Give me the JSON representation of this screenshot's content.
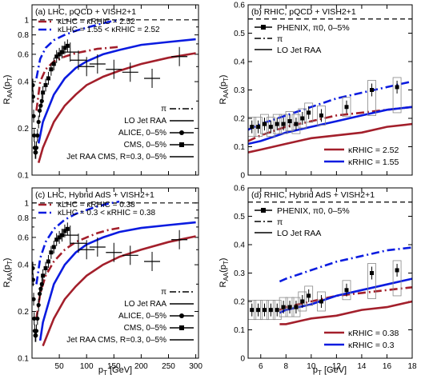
{
  "colors": {
    "red": "#a31f2b",
    "blue": "#0a1be0",
    "black": "#000000"
  },
  "x_axis_label": "p",
  "x_axis_label_sub": "T",
  "x_axis_label_unit": " [GeV]",
  "y_axis_label_main": "R",
  "y_axis_label_sub": "AA",
  "y_axis_label_paren": "(p",
  "y_axis_label_paren_sub": "T",
  "y_axis_label_close": ")",
  "chart_data": [
    {
      "id": "a",
      "type": "line",
      "title": "(a) LHC, pQCD + VISH2+1",
      "xscale": "linear",
      "yscale": "log",
      "xlim": [
        0,
        305
      ],
      "ylim": [
        0.1,
        1.25
      ],
      "x_ticks": [
        "50",
        "100",
        "150",
        "200",
        "250",
        "300"
      ],
      "y_ticks": [
        "0.1",
        "0.2",
        "0.4",
        "0.6",
        "0.8",
        "1"
      ],
      "show_x_tick_labels": false,
      "series": [
        {
          "name": "κLHC = κRHIC = 2.52",
          "color": "red",
          "dash": "dashdot",
          "x": [
            8,
            15,
            25,
            40,
            60,
            80,
            100,
            120,
            140,
            160
          ],
          "y": [
            0.26,
            0.4,
            0.48,
            0.54,
            0.58,
            0.61,
            0.63,
            0.65,
            0.66,
            0.67
          ]
        },
        {
          "name": "κLHC = 1.55 < κRHIC = 2.52",
          "color": "blue",
          "dash": "dashdot",
          "x": [
            8,
            15,
            25,
            40,
            60,
            80,
            100,
            120,
            140,
            160
          ],
          "y": [
            0.42,
            0.56,
            0.66,
            0.74,
            0.8,
            0.85,
            0.89,
            0.93,
            0.97,
            1.0
          ]
        },
        {
          "name": "red solid",
          "color": "red",
          "dash": "solid",
          "x": [
            12,
            20,
            40,
            60,
            80,
            100,
            130,
            160,
            200,
            250,
            300
          ],
          "y": [
            0.12,
            0.15,
            0.22,
            0.28,
            0.33,
            0.38,
            0.43,
            0.47,
            0.52,
            0.57,
            0.61
          ]
        },
        {
          "name": "blue solid",
          "color": "blue",
          "dash": "solid",
          "x": [
            12,
            20,
            40,
            60,
            80,
            100,
            130,
            160,
            200,
            250,
            300
          ],
          "y": [
            0.16,
            0.22,
            0.33,
            0.42,
            0.49,
            0.54,
            0.6,
            0.64,
            0.69,
            0.72,
            0.75
          ]
        },
        {
          "name": "ALICE, 0–5%",
          "color": "black",
          "marker": "circle",
          "x": [
            1.5,
            2,
            3,
            4,
            5,
            6,
            7,
            8,
            10,
            12,
            14,
            16,
            18
          ],
          "y": [
            0.38,
            0.32,
            0.24,
            0.18,
            0.15,
            0.14,
            0.14,
            0.15,
            0.18,
            0.22,
            0.26,
            0.28,
            0.3
          ]
        },
        {
          "name": "CMS, 0–5%",
          "color": "black",
          "marker": "square",
          "x": [
            20,
            25,
            30,
            35,
            40,
            45,
            50,
            55,
            60,
            65
          ],
          "y": [
            0.34,
            0.38,
            0.42,
            0.48,
            0.52,
            0.58,
            0.6,
            0.62,
            0.66,
            0.68
          ]
        },
        {
          "name": "Jet RAA CMS, R=0.3, 0–5%",
          "color": "black",
          "marker": "cross",
          "x": [
            70,
            85,
            100,
            120,
            150,
            180,
            220,
            270
          ],
          "y": [
            0.62,
            0.55,
            0.5,
            0.52,
            0.48,
            0.46,
            0.42,
            0.58
          ]
        }
      ],
      "legend": [
        "κLHC = κRHIC = 2.52",
        "κLHC = 1.55 < κRHIC = 2.52"
      ],
      "legend2": [
        {
          "label": "π",
          "style": "dashdot"
        },
        {
          "label": "LO Jet RAA",
          "style": "solid"
        },
        {
          "label": "ALICE, 0–5%",
          "style": "circle"
        },
        {
          "label": "CMS, 0–5%",
          "style": "square"
        },
        {
          "label": "Jet RAA CMS, R=0.3, 0–5%",
          "style": "cross"
        }
      ]
    },
    {
      "id": "b",
      "type": "line",
      "title": "(b) RHIC, pQCD + VISH2+1",
      "xscale": "linear",
      "yscale": "linear",
      "xlim": [
        5,
        18
      ],
      "ylim": [
        0,
        0.6
      ],
      "x_ticks": [
        "6",
        "8",
        "10",
        "12",
        "14",
        "16",
        "18"
      ],
      "y_ticks": [
        "0",
        "0.1",
        "0.2",
        "0.3",
        "0.4",
        "0.5",
        "0.6"
      ],
      "show_x_tick_labels": false,
      "series": [
        {
          "name": "red dashdot",
          "color": "red",
          "dash": "dashdot",
          "x": [
            5,
            6,
            8,
            10,
            12,
            14,
            16,
            18
          ],
          "y": [
            0.12,
            0.14,
            0.17,
            0.19,
            0.21,
            0.22,
            0.23,
            0.24
          ]
        },
        {
          "name": "blue dashdot",
          "color": "blue",
          "dash": "dashdot",
          "x": [
            5,
            6,
            8,
            10,
            12,
            14,
            16,
            18
          ],
          "y": [
            0.16,
            0.18,
            0.21,
            0.24,
            0.27,
            0.29,
            0.31,
            0.33
          ]
        },
        {
          "name": "κRHIC = 2.52",
          "color": "red",
          "dash": "solid",
          "x": [
            5,
            6,
            8,
            10,
            12,
            14,
            16,
            18
          ],
          "y": [
            0.08,
            0.09,
            0.11,
            0.13,
            0.14,
            0.15,
            0.17,
            0.18
          ]
        },
        {
          "name": "κRHIC = 1.55",
          "color": "blue",
          "dash": "solid",
          "x": [
            5,
            6,
            8,
            10,
            12,
            14,
            16,
            18
          ],
          "y": [
            0.11,
            0.12,
            0.15,
            0.17,
            0.19,
            0.21,
            0.23,
            0.24
          ]
        },
        {
          "name": "PHENIX, π0, 0–5%",
          "color": "black",
          "marker": "square",
          "x": [
            5.3,
            5.8,
            6.3,
            6.8,
            7.3,
            7.8,
            8.3,
            8.8,
            9.3,
            9.8,
            10.8,
            12.8,
            14.8,
            16.8
          ],
          "y": [
            0.17,
            0.17,
            0.18,
            0.17,
            0.18,
            0.18,
            0.19,
            0.18,
            0.2,
            0.22,
            0.21,
            0.24,
            0.3,
            0.31
          ]
        }
      ],
      "legend_top": [
        {
          "label": "PHENIX, π0, 0–5%",
          "style": "square"
        },
        {
          "label": "π",
          "style": "dashdot"
        },
        {
          "label": "LO Jet RAA",
          "style": "solid"
        }
      ],
      "legend_bottom": [
        "κRHIC = 2.52",
        "κRHIC = 1.55"
      ]
    },
    {
      "id": "c",
      "type": "line",
      "title": "(c) LHC, Hybrid AdS + VISH2+1",
      "xscale": "linear",
      "yscale": "log",
      "xlim": [
        0,
        305
      ],
      "ylim": [
        0.1,
        1.25
      ],
      "x_ticks": [
        "50",
        "100",
        "150",
        "200",
        "250",
        "300"
      ],
      "y_ticks": [
        "0.1",
        "0.2",
        "0.4",
        "0.6",
        "0.8",
        "1"
      ],
      "show_x_tick_labels": true,
      "series": [
        {
          "name": "κLHC = κRHIC = 0.38",
          "color": "red",
          "dash": "dashdot",
          "x": [
            8,
            15,
            25,
            40,
            60,
            80,
            100,
            120,
            140,
            160
          ],
          "y": [
            0.18,
            0.26,
            0.34,
            0.42,
            0.5,
            0.56,
            0.6,
            0.64,
            0.67,
            0.69
          ]
        },
        {
          "name": "κLHC = 0.3 < κRHIC = 0.38",
          "color": "blue",
          "dash": "dashdot",
          "x": [
            8,
            15,
            25,
            40,
            60,
            80,
            100,
            120,
            140,
            160
          ],
          "y": [
            0.3,
            0.44,
            0.56,
            0.68,
            0.78,
            0.85,
            0.9,
            0.95,
            0.99,
            1.02
          ]
        },
        {
          "name": "red solid",
          "color": "red",
          "dash": "solid",
          "x": [
            20,
            40,
            60,
            80,
            100,
            130,
            160,
            200,
            250,
            300
          ],
          "y": [
            0.12,
            0.18,
            0.24,
            0.29,
            0.34,
            0.4,
            0.45,
            0.5,
            0.56,
            0.61
          ]
        },
        {
          "name": "blue solid",
          "color": "blue",
          "dash": "solid",
          "x": [
            15,
            20,
            40,
            60,
            80,
            100,
            130,
            160,
            200,
            250,
            300
          ],
          "y": [
            0.13,
            0.17,
            0.3,
            0.4,
            0.48,
            0.54,
            0.6,
            0.65,
            0.69,
            0.72,
            0.75
          ]
        },
        {
          "name": "ALICE, 0–5%",
          "color": "black",
          "marker": "circle",
          "x": [
            1.5,
            2,
            3,
            4,
            5,
            6,
            7,
            8,
            10,
            12,
            14,
            16,
            18
          ],
          "y": [
            0.38,
            0.32,
            0.24,
            0.18,
            0.15,
            0.14,
            0.14,
            0.15,
            0.18,
            0.22,
            0.26,
            0.28,
            0.3
          ]
        },
        {
          "name": "CMS, 0–5%",
          "color": "black",
          "marker": "square",
          "x": [
            20,
            25,
            30,
            35,
            40,
            45,
            50,
            55,
            60,
            65
          ],
          "y": [
            0.34,
            0.38,
            0.42,
            0.48,
            0.52,
            0.58,
            0.6,
            0.62,
            0.66,
            0.68
          ]
        },
        {
          "name": "Jet RAA CMS, R=0.3, 0–5%",
          "color": "black",
          "marker": "cross",
          "x": [
            70,
            85,
            100,
            120,
            150,
            180,
            220,
            270
          ],
          "y": [
            0.62,
            0.55,
            0.5,
            0.52,
            0.48,
            0.46,
            0.42,
            0.58
          ]
        }
      ],
      "legend": [
        "κLHC = κRHIC = 0.38",
        "κLHC = 0.3 < κRHIC = 0.38"
      ],
      "legend2": [
        {
          "label": "π",
          "style": "dashdot"
        },
        {
          "label": "LO Jet RAA",
          "style": "solid"
        },
        {
          "label": "ALICE, 0–5%",
          "style": "circle"
        },
        {
          "label": "CMS, 0–5%",
          "style": "square"
        },
        {
          "label": "Jet RAA CMS, R=0.3, 0–5%",
          "style": "cross"
        }
      ]
    },
    {
      "id": "d",
      "type": "line",
      "title": "(d) RHIC, Hybrid AdS + VISH2+1",
      "xscale": "linear",
      "yscale": "linear",
      "xlim": [
        5,
        18
      ],
      "ylim": [
        0,
        0.6
      ],
      "x_ticks": [
        "6",
        "8",
        "10",
        "12",
        "14",
        "16",
        "18"
      ],
      "y_ticks": [
        "0",
        "0.1",
        "0.2",
        "0.3",
        "0.4",
        "0.5",
        "0.6"
      ],
      "show_x_tick_labels": true,
      "series": [
        {
          "name": "red dashdot",
          "color": "red",
          "dash": "dashdot",
          "x": [
            7.5,
            8,
            10,
            12,
            14,
            16,
            18
          ],
          "y": [
            0.17,
            0.18,
            0.2,
            0.22,
            0.23,
            0.24,
            0.25
          ]
        },
        {
          "name": "blue dashdot",
          "color": "blue",
          "dash": "dashdot",
          "x": [
            7.5,
            8,
            10,
            12,
            14,
            16,
            18
          ],
          "y": [
            0.27,
            0.28,
            0.31,
            0.34,
            0.36,
            0.38,
            0.39
          ]
        },
        {
          "name": "κRHIC = 0.38",
          "color": "red",
          "dash": "solid",
          "x": [
            7.5,
            8,
            10,
            12,
            14,
            16,
            18
          ],
          "y": [
            0.12,
            0.12,
            0.14,
            0.15,
            0.17,
            0.18,
            0.2
          ]
        },
        {
          "name": "κRHIC = 0.3",
          "color": "blue",
          "dash": "solid",
          "x": [
            7.5,
            8,
            10,
            12,
            14,
            16,
            18
          ],
          "y": [
            0.16,
            0.17,
            0.19,
            0.22,
            0.24,
            0.26,
            0.28
          ]
        },
        {
          "name": "PHENIX, π0, 0–5%",
          "color": "black",
          "marker": "square",
          "x": [
            5.3,
            5.8,
            6.3,
            6.8,
            7.3,
            7.8,
            8.3,
            8.8,
            9.3,
            9.8,
            10.8,
            12.8,
            14.8,
            16.8
          ],
          "y": [
            0.17,
            0.17,
            0.17,
            0.17,
            0.17,
            0.18,
            0.18,
            0.18,
            0.2,
            0.22,
            0.2,
            0.24,
            0.3,
            0.31
          ]
        }
      ],
      "legend_top": [
        {
          "label": "PHENIX, π0, 0–5%",
          "style": "square"
        },
        {
          "label": "π",
          "style": "dashdot"
        },
        {
          "label": "LO Jet RAA",
          "style": "solid"
        }
      ],
      "legend_bottom": [
        "κRHIC = 0.38",
        "κRHIC = 0.3"
      ]
    }
  ]
}
